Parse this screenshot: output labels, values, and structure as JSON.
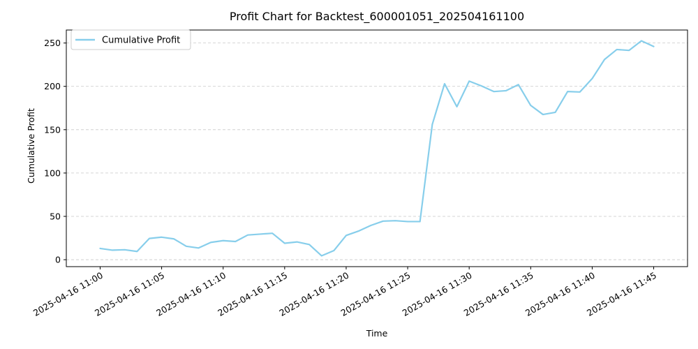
{
  "chart_data": {
    "type": "line",
    "title": "Profit Chart for Backtest_600001051_202504161100",
    "xlabel": "Time",
    "ylabel": "Cumulative Profit",
    "xlim": [
      "2025-04-16 10:57:15",
      "2025-04-16 11:47:45"
    ],
    "ylim": [
      -8,
      265
    ],
    "yticks": [
      0,
      50,
      100,
      150,
      200,
      250
    ],
    "xticks": [
      "2025-04-16 11:00",
      "2025-04-16 11:05",
      "2025-04-16 11:10",
      "2025-04-16 11:15",
      "2025-04-16 11:20",
      "2025-04-16 11:25",
      "2025-04-16 11:30",
      "2025-04-16 11:35",
      "2025-04-16 11:40",
      "2025-04-16 11:45"
    ],
    "grid": "y-dashed",
    "legend_position": "top-left",
    "series": [
      {
        "name": "Cumulative Profit",
        "color": "#87CEEB",
        "x": [
          "2025-04-16 11:00",
          "2025-04-16 11:01",
          "2025-04-16 11:02",
          "2025-04-16 11:03",
          "2025-04-16 11:04",
          "2025-04-16 11:05",
          "2025-04-16 11:06",
          "2025-04-16 11:07",
          "2025-04-16 11:08",
          "2025-04-16 11:09",
          "2025-04-16 11:10",
          "2025-04-16 11:11",
          "2025-04-16 11:12",
          "2025-04-16 11:13",
          "2025-04-16 11:14",
          "2025-04-16 11:15",
          "2025-04-16 11:16",
          "2025-04-16 11:17",
          "2025-04-16 11:18",
          "2025-04-16 11:19",
          "2025-04-16 11:20",
          "2025-04-16 11:21",
          "2025-04-16 11:22",
          "2025-04-16 11:23",
          "2025-04-16 11:24",
          "2025-04-16 11:25",
          "2025-04-16 11:26",
          "2025-04-16 11:27",
          "2025-04-16 11:28",
          "2025-04-16 11:29",
          "2025-04-16 11:30",
          "2025-04-16 11:31",
          "2025-04-16 11:32",
          "2025-04-16 11:33",
          "2025-04-16 11:34",
          "2025-04-16 11:35",
          "2025-04-16 11:36",
          "2025-04-16 11:37",
          "2025-04-16 11:38",
          "2025-04-16 11:39",
          "2025-04-16 11:40",
          "2025-04-16 11:41",
          "2025-04-16 11:42",
          "2025-04-16 11:43",
          "2025-04-16 11:44",
          "2025-04-16 11:45"
        ],
        "values": [
          13,
          11,
          11.5,
          9.5,
          24.5,
          26,
          24,
          15.5,
          13.5,
          20,
          22,
          21,
          28.5,
          29.5,
          30.5,
          19,
          20.5,
          17.5,
          4.5,
          10.5,
          28,
          33,
          39.5,
          44.5,
          45,
          44,
          44,
          156,
          203,
          176.5,
          206,
          200.5,
          194,
          195,
          202,
          178,
          167.5,
          170,
          194,
          193.5,
          209,
          231,
          242.5,
          241.5,
          252.5,
          246
        ]
      }
    ]
  }
}
